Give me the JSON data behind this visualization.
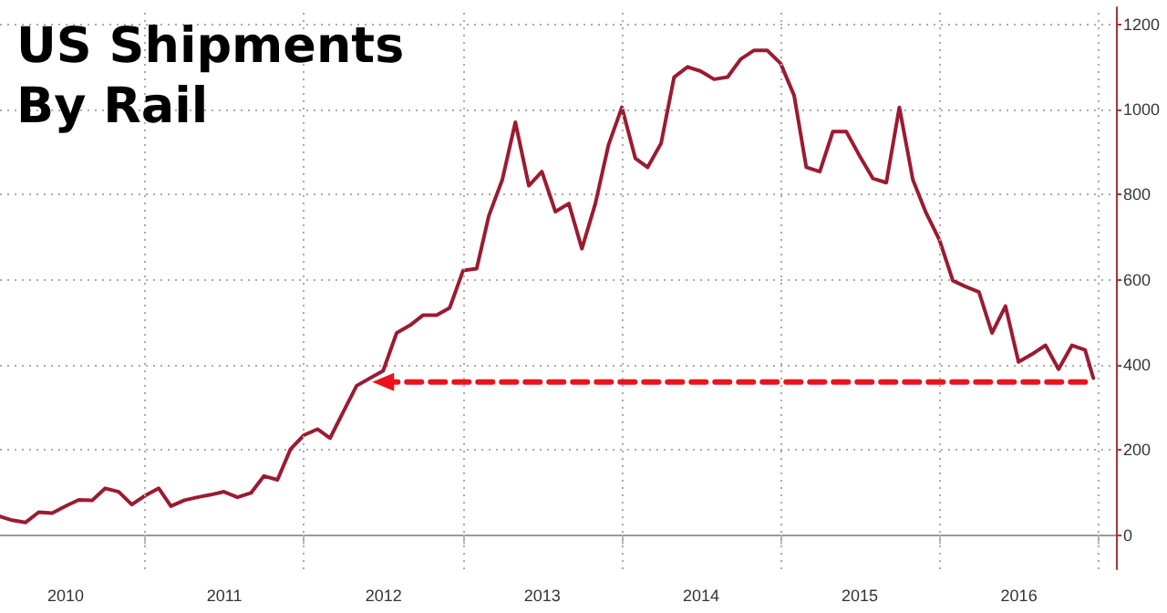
{
  "chart_data": {
    "type": "line",
    "title": "US Shipments\nBy Rail",
    "x": [
      "2010-02-01",
      "2010-03-01",
      "2010-04-01",
      "2010-05-01",
      "2010-06-01",
      "2010-07-01",
      "2010-08-01",
      "2010-09-01",
      "2010-10-01",
      "2010-11-01",
      "2010-12-01",
      "2011-01-01",
      "2011-02-01",
      "2011-03-01",
      "2011-04-01",
      "2011-05-01",
      "2011-06-01",
      "2011-07-01",
      "2011-08-01",
      "2011-09-01",
      "2011-10-01",
      "2011-11-01",
      "2011-12-01",
      "2012-01-01",
      "2012-02-01",
      "2012-03-01",
      "2012-04-01",
      "2012-05-01",
      "2012-06-01",
      "2012-07-01",
      "2012-08-01",
      "2012-09-01",
      "2012-10-01",
      "2012-11-01",
      "2012-12-01",
      "2013-01-01",
      "2013-02-01",
      "2013-03-01",
      "2013-04-01",
      "2013-05-01",
      "2013-06-01",
      "2013-07-01",
      "2013-08-01",
      "2013-09-01",
      "2013-10-01",
      "2013-11-01",
      "2013-12-01",
      "2014-01-01",
      "2014-02-01",
      "2014-03-01",
      "2014-04-01",
      "2014-05-01",
      "2014-06-01",
      "2014-07-01",
      "2014-08-01",
      "2014-09-01",
      "2014-10-01",
      "2014-11-01",
      "2014-12-01",
      "2015-01-01",
      "2015-02-01",
      "2015-03-01",
      "2015-04-01",
      "2015-05-01",
      "2015-06-01",
      "2015-07-01",
      "2015-08-01",
      "2015-09-01",
      "2015-10-01",
      "2015-11-01",
      "2015-12-01",
      "2016-01-01",
      "2016-02-01",
      "2016-03-01",
      "2016-04-01",
      "2016-05-01",
      "2016-06-01",
      "2016-07-01",
      "2016-08-01",
      "2016-09-01",
      "2016-10-01",
      "2016-11-01",
      "2016-12-01",
      "2016-12-20"
    ],
    "series": [
      {
        "color": "#9b1b30",
        "values": [
          44,
          35,
          30,
          54,
          52,
          68,
          83,
          82,
          110,
          102,
          72,
          93,
          110,
          68,
          82,
          89,
          95,
          102,
          89,
          99,
          139,
          130,
          202,
          235,
          249,
          228,
          291,
          351,
          369,
          386,
          475,
          493,
          517,
          517,
          534,
          622,
          626,
          750,
          835,
          970,
          821,
          854,
          760,
          779,
          673,
          779,
          916,
          1005,
          885,
          864,
          920,
          1076,
          1100,
          1090,
          1071,
          1076,
          1118,
          1139,
          1139,
          1108,
          1033,
          864,
          854,
          948,
          948,
          892,
          838,
          828,
          1005,
          835,
          758,
          694,
          598,
          584,
          571,
          475,
          538,
          407,
          425,
          446,
          390,
          446,
          435,
          369
        ]
      },
      {
        "type": "line",
        "color": "#e8141c",
        "line_style": "dashed",
        "marker": "triangle",
        "x": [
          "2012-07-01",
          "2016-12-20"
        ],
        "values": [
          360,
          360
        ]
      }
    ],
    "xlim": [
      "2010-02-01",
      "2017-02-10"
    ],
    "xticks": [
      {
        "value": "2011-01-01",
        "label": null
      },
      {
        "value": "2012-01-01",
        "label": null
      },
      {
        "value": "2013-01-01",
        "label": null
      },
      {
        "value": "2014-01-01",
        "label": null
      },
      {
        "value": "2015-01-01",
        "label": null
      },
      {
        "value": "2016-01-01",
        "label": null
      },
      {
        "value": "2017-01-01",
        "label": null
      },
      {
        "value": "2010-07-02",
        "label": "2010"
      },
      {
        "value": "2011-07-02",
        "label": "2011"
      },
      {
        "value": "2012-07-02",
        "label": "2012"
      },
      {
        "value": "2013-07-02",
        "label": "2013"
      },
      {
        "value": "2014-07-02",
        "label": "2014"
      },
      {
        "value": "2015-07-02",
        "label": "2015"
      },
      {
        "value": "2016-07-02",
        "label": "2016"
      }
    ],
    "ylim": [
      -80,
      1240
    ],
    "yticks": [
      0,
      200,
      400,
      600,
      800,
      1000,
      1200
    ],
    "grid": true,
    "marker": "none",
    "line_style": "solid"
  }
}
